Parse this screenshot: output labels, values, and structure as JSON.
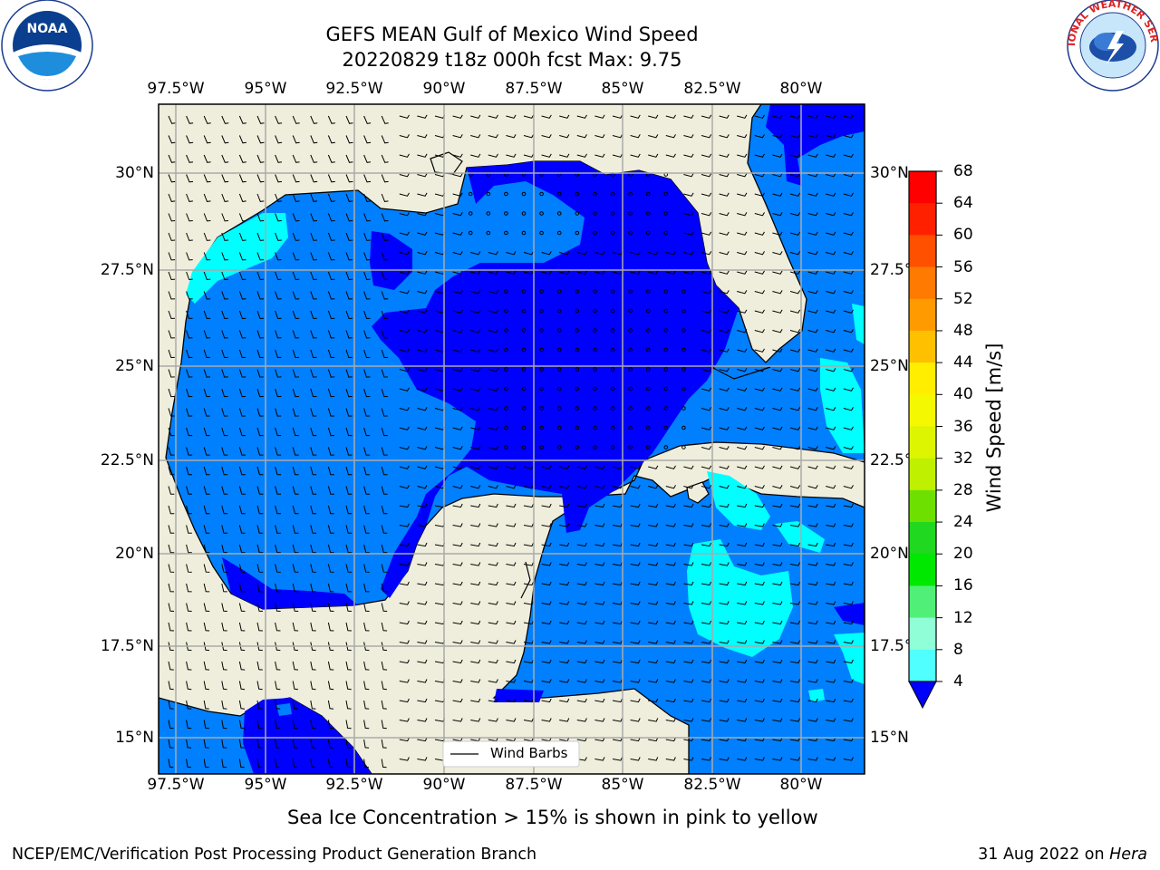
{
  "title_line1": "GEFS MEAN Gulf of Mexico Wind Speed",
  "title_line2": "20220829 t18z 000h fcst   Max: 9.75",
  "lon_ticks": [
    "97.5°W",
    "95°W",
    "92.5°W",
    "90°W",
    "87.5°W",
    "85°W",
    "82.5°W",
    "80°W"
  ],
  "lat_ticks": [
    "30°N",
    "27.5°N",
    "25°N",
    "22.5°N",
    "20°N",
    "17.5°N",
    "15°N"
  ],
  "legend_label": "Wind Barbs",
  "colorbar": {
    "title": "Wind Speed [m/s]",
    "levels": [
      "68",
      "64",
      "60",
      "56",
      "52",
      "48",
      "44",
      "40",
      "36",
      "32",
      "28",
      "24",
      "20",
      "16",
      "12",
      "8",
      "4"
    ],
    "colors": [
      "#ff0000",
      "#ff2000",
      "#ff5000",
      "#ff7a00",
      "#ff9a00",
      "#ffc000",
      "#ffee00",
      "#f4f800",
      "#ddf500",
      "#bff000",
      "#6ee000",
      "#20d820",
      "#00e800",
      "#50f078",
      "#90ffd8",
      "#50ffff",
      "#00ffff",
      "#0080ff",
      "#0000ff"
    ]
  },
  "note": "Sea Ice Concentration > 15% is shown in pink to yellow",
  "footer_left": "NCEP/EMC/Verification Post Processing Product Generation Branch",
  "footer_date": "31 Aug 2022 on ",
  "footer_machine": "Hera",
  "logos": {
    "left": "noaa-logo",
    "right": "nws-logo",
    "nws_text": "NATIONAL WEATHER SERVICE"
  }
}
